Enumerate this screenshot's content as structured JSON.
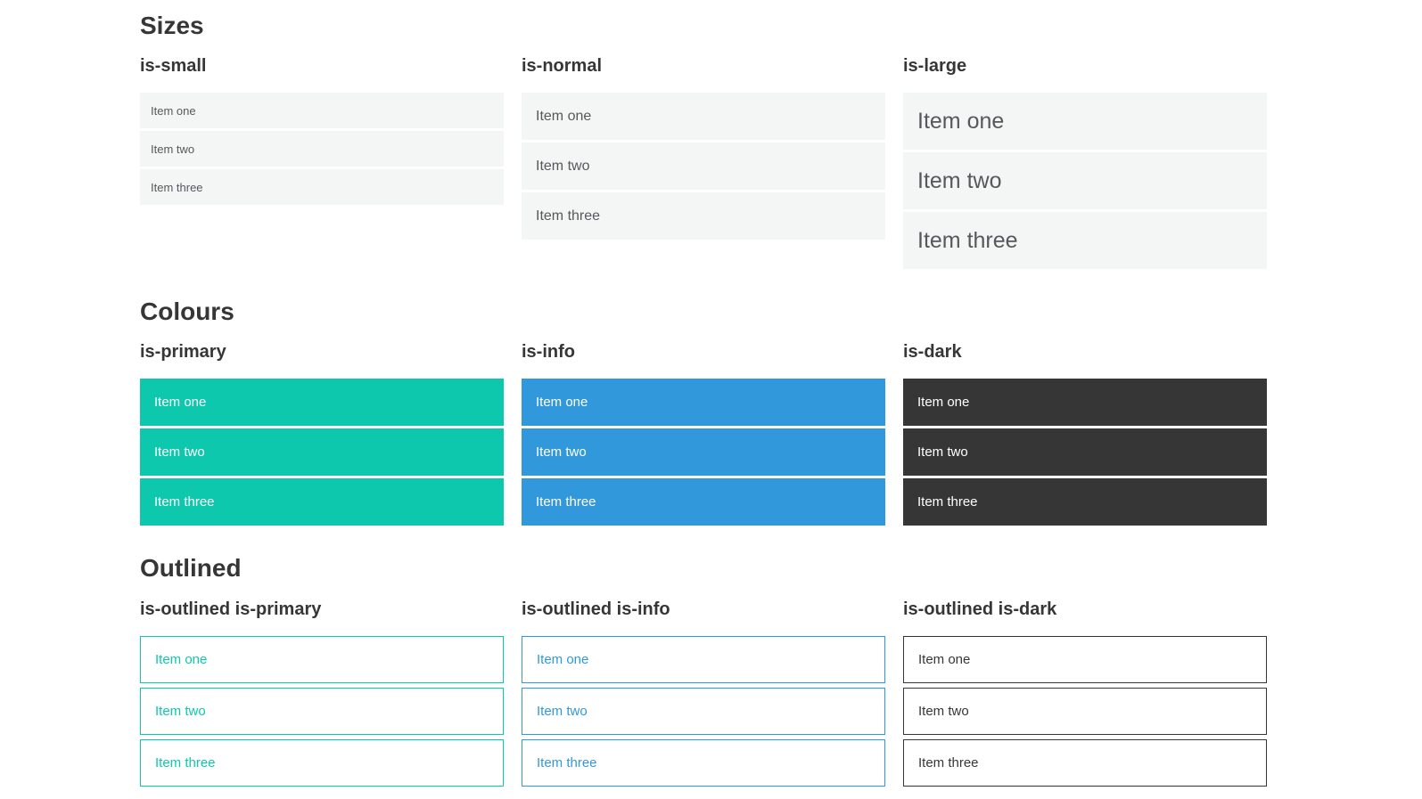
{
  "theme": {
    "page-bg": "#ffffff",
    "heading": "#363636",
    "item-text": "#55595c",
    "item-bg": "#f4f5f5",
    "primary": "#0dc8ac",
    "info": "#3298dc",
    "dark": "#363636"
  },
  "sections": [
    {
      "title": "Sizes",
      "groups": [
        {
          "label": "is-small",
          "items": [
            "Item one",
            "Item two",
            "Item three"
          ]
        },
        {
          "label": "is-normal",
          "items": [
            "Item one",
            "Item two",
            "Item three"
          ]
        },
        {
          "label": "is-large",
          "items": [
            "Item one",
            "Item two",
            "Item three"
          ]
        }
      ]
    },
    {
      "title": "Colours",
      "groups": [
        {
          "label": "is-primary",
          "items": [
            "Item one",
            "Item two",
            "Item three"
          ]
        },
        {
          "label": "is-info",
          "items": [
            "Item one",
            "Item two",
            "Item three"
          ]
        },
        {
          "label": "is-dark",
          "items": [
            "Item one",
            "Item two",
            "Item three"
          ]
        }
      ]
    },
    {
      "title": "Outlined",
      "groups": [
        {
          "label": "is-outlined is-primary",
          "items": [
            "Item one",
            "Item two",
            "Item three"
          ]
        },
        {
          "label": "is-outlined is-info",
          "items": [
            "Item one",
            "Item two",
            "Item three"
          ]
        },
        {
          "label": "is-outlined is-dark",
          "items": [
            "Item one",
            "Item two",
            "Item three"
          ]
        }
      ]
    }
  ]
}
